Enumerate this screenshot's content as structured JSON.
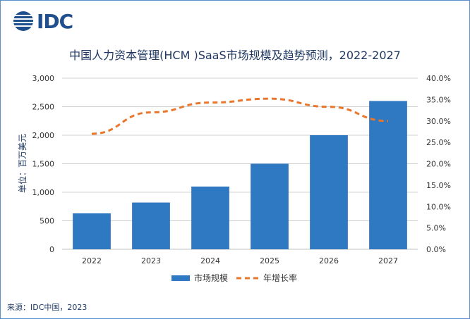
{
  "logo": {
    "text": "IDC",
    "icon": "globe-icon",
    "color": "#1f4f8c"
  },
  "source": "来源：IDC中国，2023",
  "colors": {
    "bar": "#2f78c2",
    "line": "#e8762b",
    "grid": "#d0d0d0",
    "axis_text": "#333333",
    "title": "#1f3864"
  },
  "chart_data": {
    "type": "bar",
    "title": "中国人力资本管理(HCM )SaaS市场规模及趋势预测，2022-2027",
    "ylabel": "单位：百万美元",
    "categories": [
      "2022",
      "2023",
      "2024",
      "2025",
      "2026",
      "2027"
    ],
    "ylim": [
      0,
      3000
    ],
    "y2lim": [
      0,
      40
    ],
    "yticks": [
      "0",
      "500",
      "1,000",
      "1,500",
      "2,000",
      "2,500",
      "3,000"
    ],
    "y2ticks": [
      "0.0%",
      "5.0%",
      "10.0%",
      "15.0%",
      "20.0%",
      "25.0%",
      "30.0%",
      "35.0%",
      "40.0%"
    ],
    "series": [
      {
        "name": "市场规模",
        "type": "bar",
        "axis": "left",
        "values": [
          630,
          820,
          1100,
          1500,
          2000,
          2600
        ]
      },
      {
        "name": "年增长率",
        "type": "line",
        "style": "dashed",
        "axis": "right",
        "values": [
          27.0,
          32.0,
          34.3,
          35.2,
          33.3,
          30.0
        ]
      }
    ],
    "grid": true,
    "legend": "bottom"
  }
}
